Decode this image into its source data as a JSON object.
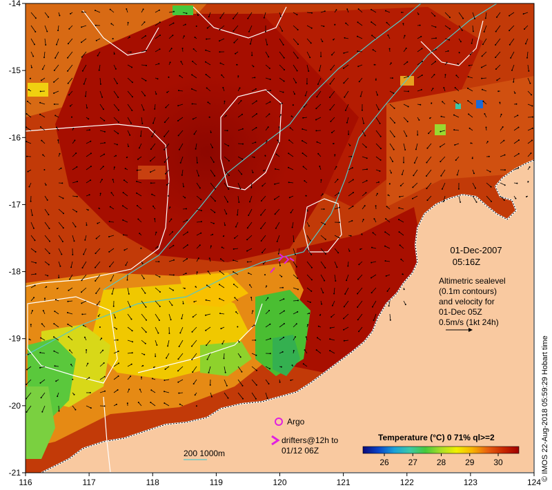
{
  "map": {
    "lon_ticks": [
      "116",
      "117",
      "118",
      "119",
      "120",
      "121",
      "122",
      "123",
      "124"
    ],
    "lat_ticks": [
      "-14",
      "-15",
      "-16",
      "-17",
      "-18",
      "-19",
      "-20",
      "-21"
    ],
    "colors": {
      "land": "#f9c9a0",
      "sea_hot": "#a20d00",
      "sea_warm": "#d03a08",
      "contour": "#ffffff",
      "isobath": "#55c8c8",
      "argo": "#e020e0"
    }
  },
  "annotations": {
    "date": "01-Dec-2007",
    "time": "05:16Z",
    "altimetry_lines": [
      "Altimetric sealevel",
      "(0.1m contours)",
      "and velocity for",
      "01-Dec 05Z",
      "0.5m/s (1kt 24h)"
    ],
    "argo_label": "Argo",
    "drifters_lines": [
      "drifters@12h to",
      "01/12 06Z"
    ],
    "bathy_label": "200  1000m"
  },
  "colorbar": {
    "title": "Temperature (°C) 0 71% ql>=2",
    "tick_labels": [
      "26",
      "27",
      "28",
      "29",
      "30"
    ],
    "colors": [
      "#0a0a7a",
      "#0a44c8",
      "#1aa0d8",
      "#3cc8a8",
      "#46c83c",
      "#aade28",
      "#f0f000",
      "#f8b400",
      "#e86010",
      "#c82800",
      "#a00000"
    ]
  },
  "credit": "© IMOS 22-Aug-2018 05:59:29 Hobart time"
}
